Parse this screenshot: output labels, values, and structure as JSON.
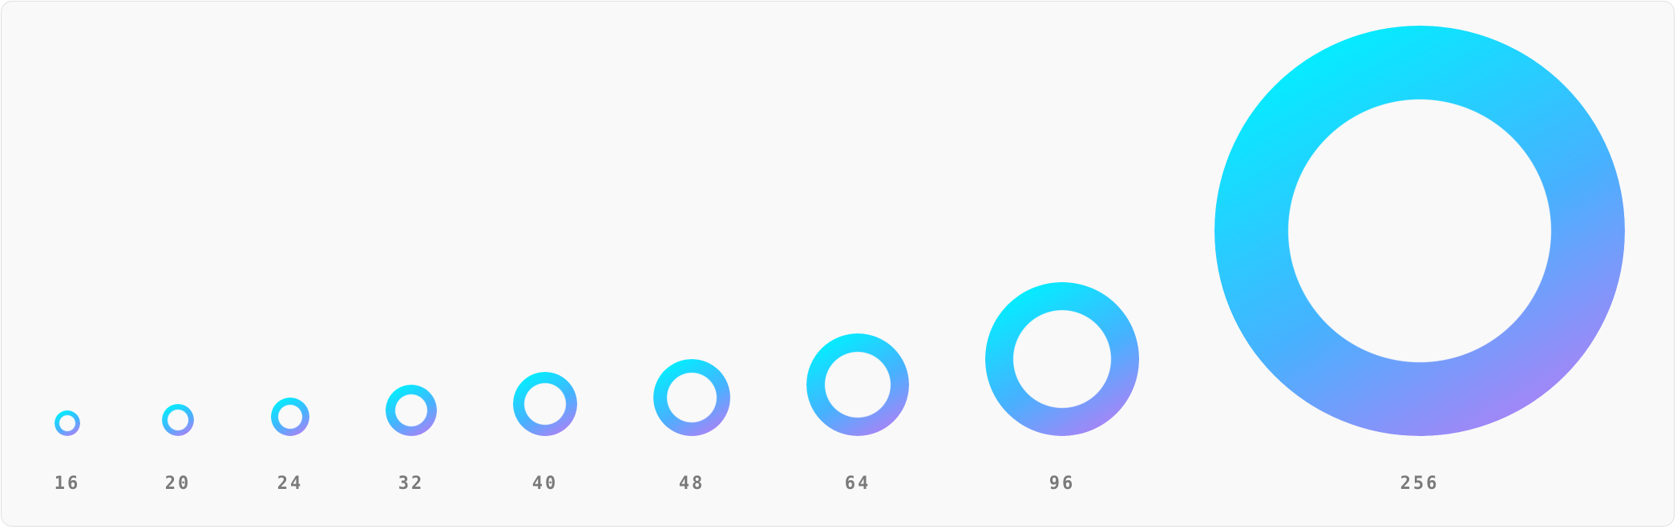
{
  "theme": {
    "gradient_start": "#00f0ff",
    "gradient_end": "#b87cf5",
    "label_color": "#7a7a7a",
    "panel_background": "#f9f9f9"
  },
  "icon": "ring-icon",
  "sizes": [
    {
      "label": "16",
      "size": 16
    },
    {
      "label": "20",
      "size": 20
    },
    {
      "label": "24",
      "size": 24
    },
    {
      "label": "32",
      "size": 32
    },
    {
      "label": "40",
      "size": 40
    },
    {
      "label": "48",
      "size": 48
    },
    {
      "label": "64",
      "size": 64
    },
    {
      "label": "96",
      "size": 96
    },
    {
      "label": "256",
      "size": 256
    }
  ]
}
